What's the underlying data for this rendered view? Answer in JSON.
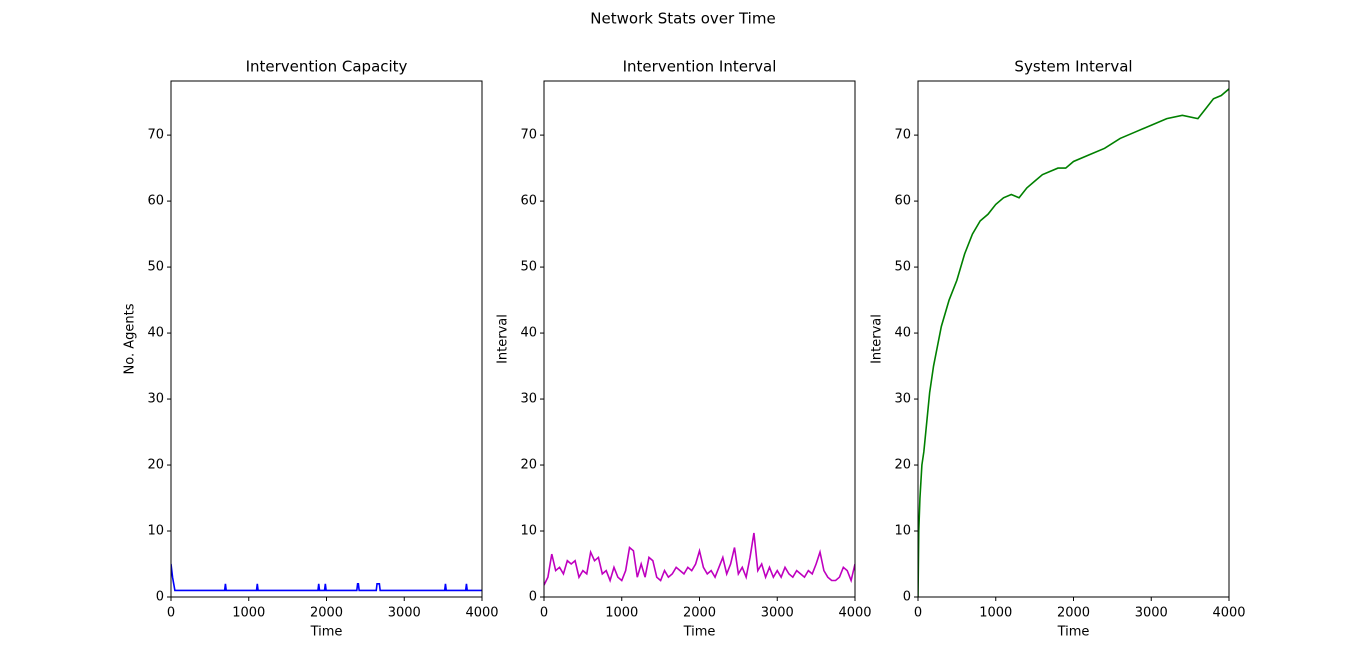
{
  "title": "Network Stats over Time",
  "chart_data": [
    {
      "type": "line",
      "title": "Intervention Capacity",
      "xlabel": "Time",
      "ylabel": "No. Agents",
      "xlim": [
        0,
        4000
      ],
      "ylim": [
        0,
        78.2
      ],
      "xticks": [
        0,
        1000,
        2000,
        3000,
        4000
      ],
      "yticks": [
        0,
        10,
        20,
        30,
        40,
        50,
        60,
        70
      ],
      "x": [
        0,
        20,
        50,
        690,
        700,
        710,
        1100,
        1110,
        1120,
        1890,
        1900,
        1910,
        1975,
        1985,
        1995,
        2390,
        2400,
        2410,
        2420,
        2640,
        2650,
        2660,
        2670,
        2680,
        2690,
        3520,
        3530,
        3540,
        3790,
        3800,
        3810,
        4000
      ],
      "series": [
        {
          "color": "#0000ff",
          "values": [
            5,
            3,
            1,
            1,
            2,
            1,
            1,
            2,
            1,
            1,
            2,
            1,
            1,
            2,
            1,
            1,
            2,
            2,
            1,
            1,
            2,
            2,
            2,
            2,
            1,
            1,
            2,
            1,
            1,
            2,
            1,
            1
          ]
        }
      ]
    },
    {
      "type": "line",
      "title": "Intervention Interval",
      "xlabel": "Time",
      "ylabel": "Interval",
      "xlim": [
        0,
        4000
      ],
      "ylim": [
        0,
        78.2
      ],
      "xticks": [
        0,
        1000,
        2000,
        3000,
        4000
      ],
      "yticks": [
        0,
        10,
        20,
        30,
        40,
        50,
        60,
        70
      ],
      "x": [
        0,
        50,
        100,
        150,
        200,
        250,
        300,
        350,
        400,
        450,
        500,
        550,
        600,
        650,
        700,
        750,
        800,
        850,
        900,
        950,
        1000,
        1050,
        1100,
        1150,
        1200,
        1250,
        1300,
        1350,
        1400,
        1450,
        1500,
        1550,
        1600,
        1650,
        1700,
        1750,
        1800,
        1850,
        1900,
        1950,
        2000,
        2050,
        2100,
        2150,
        2200,
        2250,
        2300,
        2350,
        2400,
        2450,
        2500,
        2550,
        2600,
        2650,
        2700,
        2750,
        2800,
        2850,
        2900,
        2950,
        3000,
        3050,
        3100,
        3150,
        3200,
        3250,
        3300,
        3350,
        3400,
        3450,
        3500,
        3550,
        3600,
        3650,
        3700,
        3750,
        3800,
        3850,
        3900,
        3950,
        4000
      ],
      "series": [
        {
          "color": "#bf00bf",
          "values": [
            1.8,
            3,
            6.5,
            4,
            4.5,
            3.5,
            5.5,
            5,
            5.5,
            3,
            4,
            3.5,
            6.8,
            5.5,
            6,
            3.5,
            4,
            2.5,
            4.5,
            3,
            2.5,
            4,
            7.5,
            7,
            3,
            5,
            3,
            6,
            5.5,
            3,
            2.5,
            4,
            3,
            3.5,
            4.5,
            4,
            3.5,
            4.5,
            4,
            5,
            7,
            4.5,
            3.5,
            4,
            3,
            4.5,
            6,
            3.5,
            5,
            7.5,
            3.5,
            4.5,
            3,
            6,
            9.7,
            4,
            5,
            3,
            4.5,
            3,
            4,
            3,
            4.5,
            3.5,
            3,
            4,
            3.5,
            3,
            4,
            3.5,
            5,
            6.8,
            4,
            3,
            2.5,
            2.5,
            3,
            4.5,
            4,
            2.5,
            5
          ]
        }
      ]
    },
    {
      "type": "line",
      "title": "System Interval",
      "xlabel": "Time",
      "ylabel": "Interval",
      "xlim": [
        0,
        4000
      ],
      "ylim": [
        0,
        78.2
      ],
      "xticks": [
        0,
        1000,
        2000,
        3000,
        4000
      ],
      "yticks": [
        0,
        10,
        20,
        30,
        40,
        50,
        60,
        70
      ],
      "x": [
        0,
        10,
        25,
        50,
        75,
        100,
        150,
        200,
        250,
        300,
        350,
        400,
        500,
        600,
        700,
        800,
        900,
        1000,
        1100,
        1200,
        1300,
        1400,
        1500,
        1600,
        1700,
        1800,
        1900,
        2000,
        2200,
        2400,
        2600,
        2800,
        3000,
        3200,
        3400,
        3600,
        3700,
        3800,
        3900,
        4000
      ],
      "series": [
        {
          "color": "#008000",
          "values": [
            0,
            10,
            15,
            20,
            22,
            25,
            31,
            35,
            38,
            41,
            43,
            45,
            48,
            52,
            55,
            57,
            58,
            59.5,
            60.5,
            61,
            60.5,
            62,
            63,
            64,
            64.5,
            65,
            65,
            66,
            67,
            68,
            69.5,
            70.5,
            71.5,
            72.5,
            73,
            72.5,
            74,
            75.5,
            76,
            77
          ]
        }
      ]
    }
  ]
}
